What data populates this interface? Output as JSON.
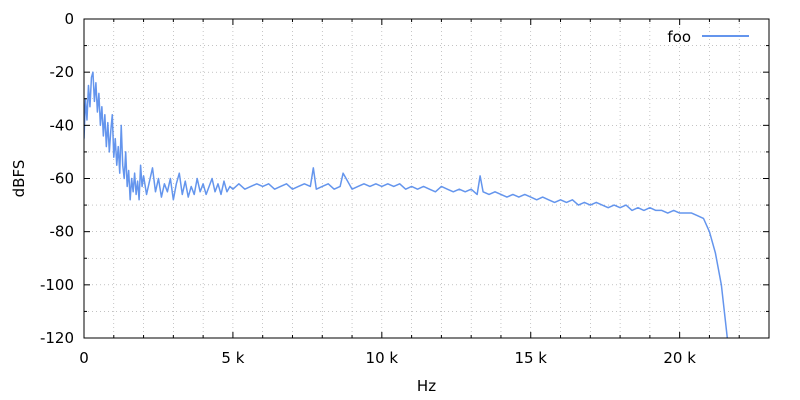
{
  "chart_data": {
    "type": "line",
    "xlabel": "Hz",
    "ylabel": "dBFS",
    "xlim": [
      0,
      23000
    ],
    "ylim": [
      -120,
      0
    ],
    "x_ticks": [
      {
        "value": 0,
        "label": "0"
      },
      {
        "value": 5000,
        "label": "5 k"
      },
      {
        "value": 10000,
        "label": "10 k"
      },
      {
        "value": 15000,
        "label": "15 k"
      },
      {
        "value": 20000,
        "label": "20 k"
      }
    ],
    "x_minor_step": 1000,
    "y_ticks": [
      {
        "value": 0,
        "label": "0"
      },
      {
        "value": -20,
        "label": "-20"
      },
      {
        "value": -40,
        "label": "-40"
      },
      {
        "value": -60,
        "label": "-60"
      },
      {
        "value": -80,
        "label": "-80"
      },
      {
        "value": -100,
        "label": "-100"
      },
      {
        "value": -120,
        "label": "-120"
      }
    ],
    "y_minor_step": 10,
    "grid": true,
    "legend_position": "top-right",
    "series": [
      {
        "name": "foo",
        "color": "#6495ed",
        "points": [
          [
            0,
            -45
          ],
          [
            50,
            -30
          ],
          [
            100,
            -38
          ],
          [
            150,
            -25
          ],
          [
            200,
            -33
          ],
          [
            250,
            -22
          ],
          [
            300,
            -20
          ],
          [
            350,
            -31
          ],
          [
            400,
            -24
          ],
          [
            450,
            -35
          ],
          [
            500,
            -28
          ],
          [
            550,
            -40
          ],
          [
            600,
            -33
          ],
          [
            650,
            -44
          ],
          [
            700,
            -36
          ],
          [
            750,
            -48
          ],
          [
            800,
            -39
          ],
          [
            850,
            -50
          ],
          [
            900,
            -42
          ],
          [
            950,
            -36
          ],
          [
            1000,
            -52
          ],
          [
            1050,
            -45
          ],
          [
            1100,
            -55
          ],
          [
            1150,
            -48
          ],
          [
            1200,
            -58
          ],
          [
            1250,
            -40
          ],
          [
            1300,
            -55
          ],
          [
            1350,
            -60
          ],
          [
            1400,
            -50
          ],
          [
            1450,
            -63
          ],
          [
            1500,
            -57
          ],
          [
            1550,
            -68
          ],
          [
            1600,
            -60
          ],
          [
            1650,
            -65
          ],
          [
            1700,
            -58
          ],
          [
            1750,
            -66
          ],
          [
            1800,
            -61
          ],
          [
            1850,
            -68
          ],
          [
            1900,
            -55
          ],
          [
            1950,
            -63
          ],
          [
            2000,
            -59
          ],
          [
            2100,
            -66
          ],
          [
            2200,
            -61
          ],
          [
            2300,
            -56
          ],
          [
            2400,
            -65
          ],
          [
            2500,
            -60
          ],
          [
            2600,
            -67
          ],
          [
            2700,
            -62
          ],
          [
            2800,
            -65
          ],
          [
            2900,
            -60
          ],
          [
            3000,
            -68
          ],
          [
            3100,
            -62
          ],
          [
            3200,
            -58
          ],
          [
            3300,
            -66
          ],
          [
            3400,
            -61
          ],
          [
            3500,
            -67
          ],
          [
            3600,
            -63
          ],
          [
            3700,
            -66
          ],
          [
            3800,
            -60
          ],
          [
            3900,
            -65
          ],
          [
            4000,
            -62
          ],
          [
            4100,
            -66
          ],
          [
            4200,
            -63
          ],
          [
            4300,
            -60
          ],
          [
            4400,
            -65
          ],
          [
            4500,
            -62
          ],
          [
            4600,
            -66
          ],
          [
            4700,
            -61
          ],
          [
            4800,
            -65
          ],
          [
            4900,
            -63
          ],
          [
            5000,
            -64
          ],
          [
            5200,
            -62
          ],
          [
            5400,
            -64
          ],
          [
            5600,
            -63
          ],
          [
            5800,
            -62
          ],
          [
            6000,
            -63
          ],
          [
            6200,
            -62
          ],
          [
            6400,
            -64
          ],
          [
            6600,
            -63
          ],
          [
            6800,
            -62
          ],
          [
            7000,
            -64
          ],
          [
            7200,
            -63
          ],
          [
            7400,
            -62
          ],
          [
            7600,
            -63
          ],
          [
            7700,
            -56
          ],
          [
            7800,
            -64
          ],
          [
            8000,
            -63
          ],
          [
            8200,
            -62
          ],
          [
            8400,
            -64
          ],
          [
            8600,
            -63
          ],
          [
            8700,
            -58
          ],
          [
            8800,
            -60
          ],
          [
            8900,
            -62
          ],
          [
            9000,
            -64
          ],
          [
            9200,
            -63
          ],
          [
            9400,
            -62
          ],
          [
            9600,
            -63
          ],
          [
            9800,
            -62
          ],
          [
            10000,
            -63
          ],
          [
            10200,
            -62
          ],
          [
            10400,
            -63
          ],
          [
            10600,
            -62
          ],
          [
            10800,
            -64
          ],
          [
            11000,
            -63
          ],
          [
            11200,
            -64
          ],
          [
            11400,
            -63
          ],
          [
            11600,
            -64
          ],
          [
            11800,
            -65
          ],
          [
            12000,
            -63
          ],
          [
            12200,
            -64
          ],
          [
            12400,
            -65
          ],
          [
            12600,
            -64
          ],
          [
            12800,
            -65
          ],
          [
            13000,
            -64
          ],
          [
            13200,
            -66
          ],
          [
            13300,
            -59
          ],
          [
            13400,
            -65
          ],
          [
            13600,
            -66
          ],
          [
            13800,
            -65
          ],
          [
            14000,
            -66
          ],
          [
            14200,
            -67
          ],
          [
            14400,
            -66
          ],
          [
            14600,
            -67
          ],
          [
            14800,
            -66
          ],
          [
            15000,
            -67
          ],
          [
            15200,
            -68
          ],
          [
            15400,
            -67
          ],
          [
            15600,
            -68
          ],
          [
            15800,
            -69
          ],
          [
            16000,
            -68
          ],
          [
            16200,
            -69
          ],
          [
            16400,
            -68
          ],
          [
            16600,
            -70
          ],
          [
            16800,
            -69
          ],
          [
            17000,
            -70
          ],
          [
            17200,
            -69
          ],
          [
            17400,
            -70
          ],
          [
            17600,
            -71
          ],
          [
            17800,
            -70
          ],
          [
            18000,
            -71
          ],
          [
            18200,
            -70
          ],
          [
            18400,
            -72
          ],
          [
            18600,
            -71
          ],
          [
            18800,
            -72
          ],
          [
            19000,
            -71
          ],
          [
            19200,
            -72
          ],
          [
            19400,
            -72
          ],
          [
            19600,
            -73
          ],
          [
            19800,
            -72
          ],
          [
            20000,
            -73
          ],
          [
            20200,
            -73
          ],
          [
            20400,
            -73
          ],
          [
            20600,
            -74
          ],
          [
            20800,
            -75
          ],
          [
            21000,
            -80
          ],
          [
            21200,
            -88
          ],
          [
            21400,
            -100
          ],
          [
            21550,
            -115
          ],
          [
            21600,
            -120
          ]
        ]
      }
    ]
  }
}
